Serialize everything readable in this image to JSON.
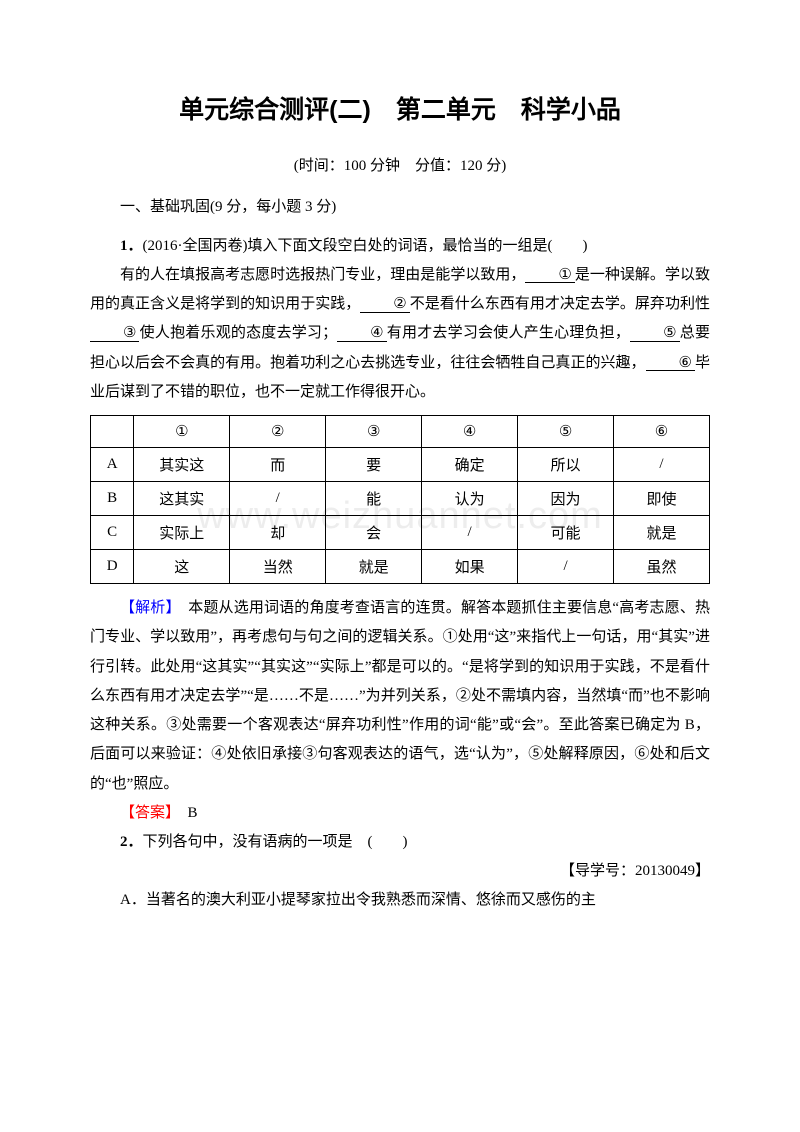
{
  "title": "单元综合测评(二)　第二单元　科学小品",
  "meta": "(时间：100 分钟　分值：120 分)",
  "section1_heading": "一、基础巩固(9 分，每小题 3 分)",
  "q1": {
    "number": "1．",
    "source": "(2016·全国丙卷)",
    "stem": "填入下面文段空白处的词语，最恰当的一组是(　　)",
    "passage_prefix": "有的人在填报高考志愿时选报热门专业，理由是能学以致用，",
    "b1": "①",
    "seg1": "是一种误解。学以致用的真正含义是将学到的知识用于实践，",
    "b2": "②",
    "seg2": "不是看什么东西有用才决定去学。屏弃功利性",
    "b3": "③",
    "seg3": "使人抱着乐观的态度去学习；",
    "b4": "④",
    "seg4": "有用才去学习会使人产生心理负担，",
    "b5": "⑤",
    "seg5": "总要担心以后会不会真的有用。抱着功利之心去挑选专业，往往会牺牲自己真正的兴趣，",
    "b6": "⑥",
    "seg6": "毕业后谋到了不错的职位，也不一定就工作得很开心。"
  },
  "table": {
    "header": [
      "",
      "①",
      "②",
      "③",
      "④",
      "⑤",
      "⑥"
    ],
    "rows": [
      [
        "A",
        "其实这",
        "而",
        "要",
        "确定",
        "所以",
        "/"
      ],
      [
        "B",
        "这其实",
        "/",
        "能",
        "认为",
        "因为",
        "即使"
      ],
      [
        "C",
        "实际上",
        "却",
        "会",
        "/",
        "可能",
        "就是"
      ],
      [
        "D",
        "这",
        "当然",
        "就是",
        "如果",
        "/",
        "虽然"
      ]
    ]
  },
  "analysis": {
    "label": "【解析】",
    "text": "　本题从选用词语的角度考查语言的连贯。解答本题抓住主要信息“高考志愿、热门专业、学以致用”，再考虑句与句之间的逻辑关系。①处用“这”来指代上一句话，用“其实”进行引转。此处用“这其实”“其实这”“实际上”都是可以的。“是将学到的知识用于实践，不是看什么东西有用才决定去学”“是……不是……”为并列关系，②处不需填内容，当然填“而”也不影响这种关系。③处需要一个客观表达“屏弃功利性”作用的词“能”或“会”。至此答案已确定为 B，后面可以来验证：④处依旧承接③句客观表达的语气，选“认为”，⑤处解释原因，⑥处和后文的“也”照应。"
  },
  "answer": {
    "label": "【答案】",
    "text": "　B"
  },
  "q2": {
    "number": "2．",
    "stem": "下列各句中，没有语病的一项是　(　　)",
    "ref": "【导学号：20130049】",
    "optA": "A．当著名的澳大利亚小提琴家拉出令我熟悉而深情、悠徐而又感伤的主"
  },
  "watermark": "www.weizhuannet.com",
  "colors": {
    "analysis_label": "#0000ff",
    "answer_label": "#ff0000",
    "text": "#000000",
    "background": "#ffffff",
    "watermark": "rgba(0,0,0,0.07)"
  }
}
